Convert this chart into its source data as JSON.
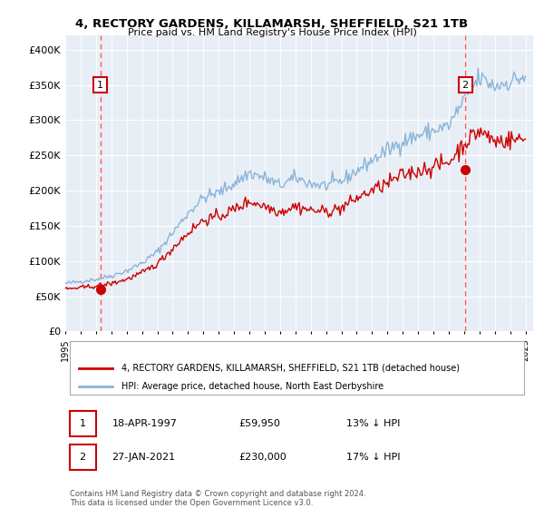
{
  "title_line1": "4, RECTORY GARDENS, KILLAMARSH, SHEFFIELD, S21 1TB",
  "title_line2": "Price paid vs. HM Land Registry's House Price Index (HPI)",
  "xlim_start": 1995.0,
  "xlim_end": 2025.5,
  "ylim_bottom": 0,
  "ylim_top": 420000,
  "yticks": [
    0,
    50000,
    100000,
    150000,
    200000,
    250000,
    300000,
    350000,
    400000
  ],
  "ytick_labels": [
    "£0",
    "£50K",
    "£100K",
    "£150K",
    "£200K",
    "£250K",
    "£300K",
    "£350K",
    "£400K"
  ],
  "xticks": [
    1995,
    1996,
    1997,
    1998,
    1999,
    2000,
    2001,
    2002,
    2003,
    2004,
    2005,
    2006,
    2007,
    2008,
    2009,
    2010,
    2011,
    2012,
    2013,
    2014,
    2015,
    2016,
    2017,
    2018,
    2019,
    2020,
    2021,
    2022,
    2023,
    2024,
    2025
  ],
  "hpi_color": "#8ab4d8",
  "price_color": "#cc0000",
  "vline_color": "#ff5555",
  "marker_color": "#cc0000",
  "bg_color": "#e8eef6",
  "legend_label_red": "4, RECTORY GARDENS, KILLAMARSH, SHEFFIELD, S21 1TB (detached house)",
  "legend_label_blue": "HPI: Average price, detached house, North East Derbyshire",
  "sale1_x": 1997.29,
  "sale1_y": 59950,
  "sale1_label": "1",
  "sale2_x": 2021.07,
  "sale2_y": 230000,
  "sale2_label": "2",
  "annotation1_date": "18-APR-1997",
  "annotation1_price": "£59,950",
  "annotation1_hpi": "13% ↓ HPI",
  "annotation2_date": "27-JAN-2021",
  "annotation2_price": "£230,000",
  "annotation2_hpi": "17% ↓ HPI",
  "footer": "Contains HM Land Registry data © Crown copyright and database right 2024.\nThis data is licensed under the Open Government Licence v3.0.",
  "hpi_anchors": {
    "1995": 68000,
    "1996": 71000,
    "1997": 74000,
    "1998": 79000,
    "1999": 86000,
    "2000": 97000,
    "2001": 113000,
    "2002": 140000,
    "2003": 168000,
    "2004": 190000,
    "2005": 197000,
    "2006": 210000,
    "2007": 225000,
    "2008": 218000,
    "2009": 207000,
    "2010": 218000,
    "2011": 210000,
    "2012": 207000,
    "2013": 213000,
    "2014": 228000,
    "2015": 243000,
    "2016": 257000,
    "2017": 270000,
    "2018": 278000,
    "2019": 285000,
    "2020": 292000,
    "2021": 328000,
    "2022": 360000,
    "2023": 348000,
    "2024": 355000,
    "2025": 362000
  },
  "price_anchors": {
    "1995": 60000,
    "1996": 62000,
    "1997": 64500,
    "1998": 68000,
    "1999": 74000,
    "2000": 83000,
    "2001": 96000,
    "2002": 118000,
    "2003": 140000,
    "2004": 158000,
    "2005": 163000,
    "2006": 173000,
    "2007": 185000,
    "2008": 178000,
    "2009": 170000,
    "2010": 178000,
    "2011": 172000,
    "2012": 170000,
    "2013": 175000,
    "2014": 189000,
    "2015": 200000,
    "2016": 210000,
    "2017": 222000,
    "2018": 228000,
    "2019": 234000,
    "2020": 240000,
    "2021": 267000,
    "2022": 285000,
    "2023": 270000,
    "2024": 272000,
    "2025": 273000
  }
}
